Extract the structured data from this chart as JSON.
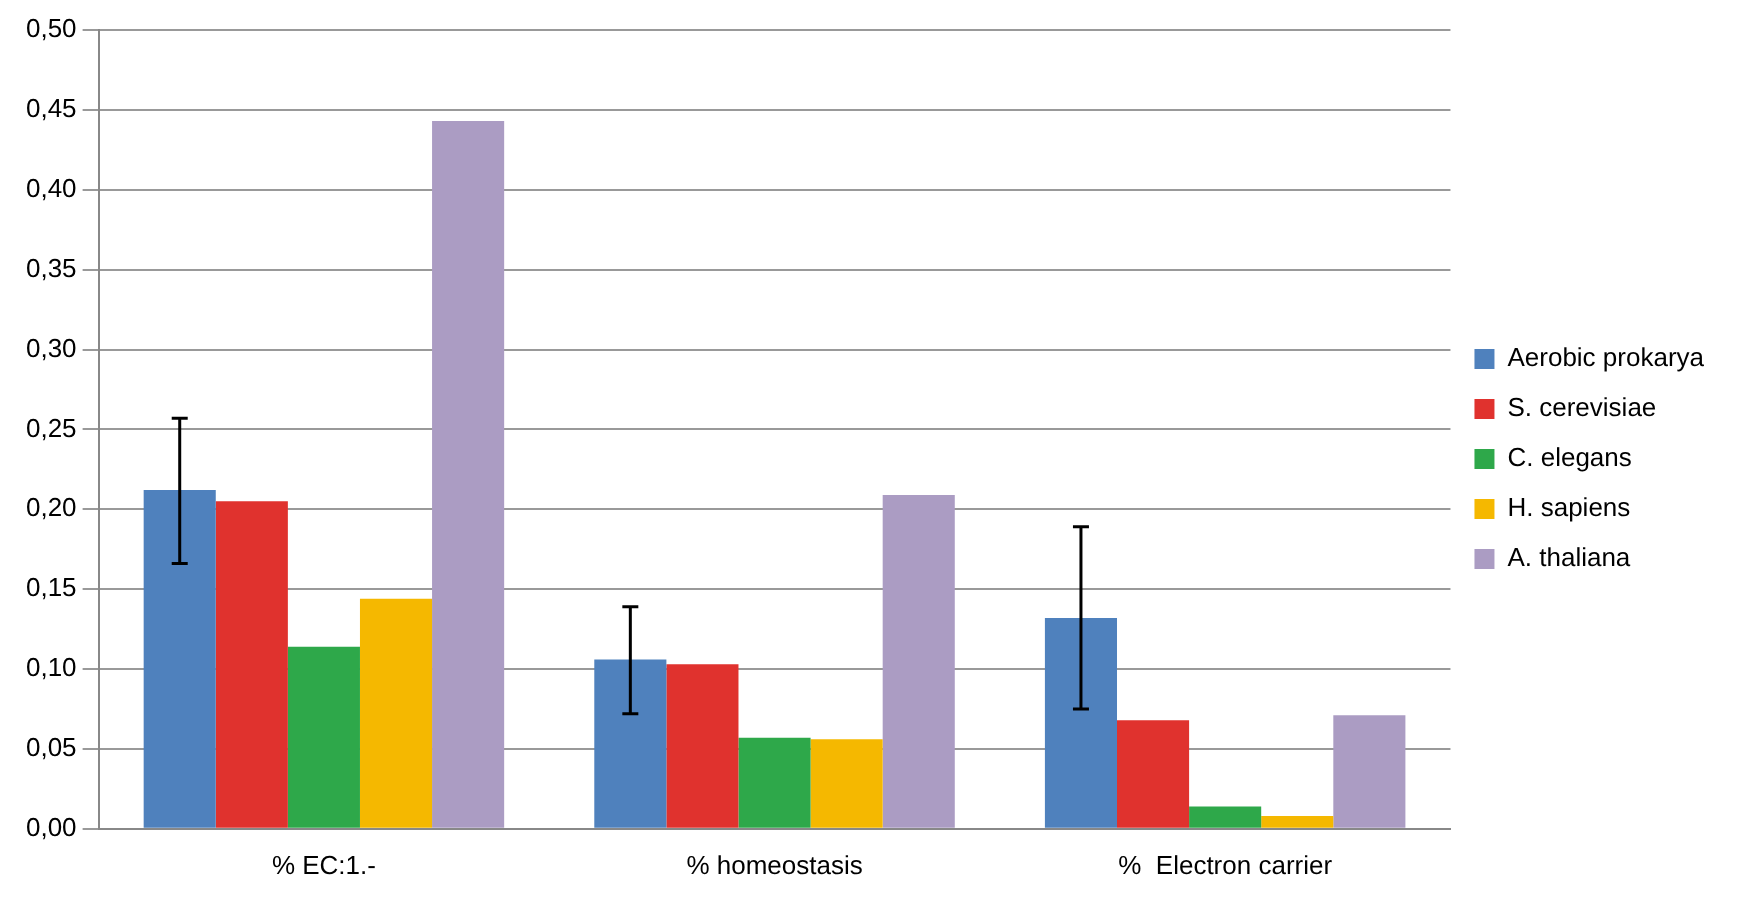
{
  "chart_data": {
    "type": "bar",
    "categories": [
      "% EC:1.-",
      "% homeostasis",
      "%  Electron carrier"
    ],
    "series": [
      {
        "name": "Aerobic prokarya",
        "color": "#4f81bd",
        "values": [
          0.212,
          0.106,
          0.132
        ],
        "errors": [
          [
            0.166,
            0.257
          ],
          [
            0.072,
            0.139
          ],
          [
            0.075,
            0.189
          ]
        ]
      },
      {
        "name": "S. cerevisiae",
        "color": "#e0322e",
        "values": [
          0.205,
          0.103,
          0.068
        ]
      },
      {
        "name": "C. elegans",
        "color": "#2ea84a",
        "values": [
          0.114,
          0.057,
          0.014
        ]
      },
      {
        "name": "H. sapiens",
        "color": "#f5b800",
        "values": [
          0.144,
          0.056,
          0.008
        ]
      },
      {
        "name": "A. thaliana",
        "color": "#ab9cc3",
        "values": [
          0.443,
          0.209,
          0.071
        ]
      }
    ],
    "ylim": [
      0,
      0.5
    ],
    "yticks": [
      {
        "value": 0,
        "label": "0,00"
      },
      {
        "value": 0.05,
        "label": "0,05"
      },
      {
        "value": 0.1,
        "label": "0,10"
      },
      {
        "value": 0.15,
        "label": "0,15"
      },
      {
        "value": 0.2,
        "label": "0,20"
      },
      {
        "value": 0.25,
        "label": "0,25"
      },
      {
        "value": 0.3,
        "label": "0,30"
      },
      {
        "value": 0.35,
        "label": "0,35"
      },
      {
        "value": 0.4,
        "label": "0,40"
      },
      {
        "value": 0.45,
        "label": "0,45"
      },
      {
        "value": 0.5,
        "label": "0,50"
      }
    ],
    "grid": "y",
    "legend": "right"
  }
}
